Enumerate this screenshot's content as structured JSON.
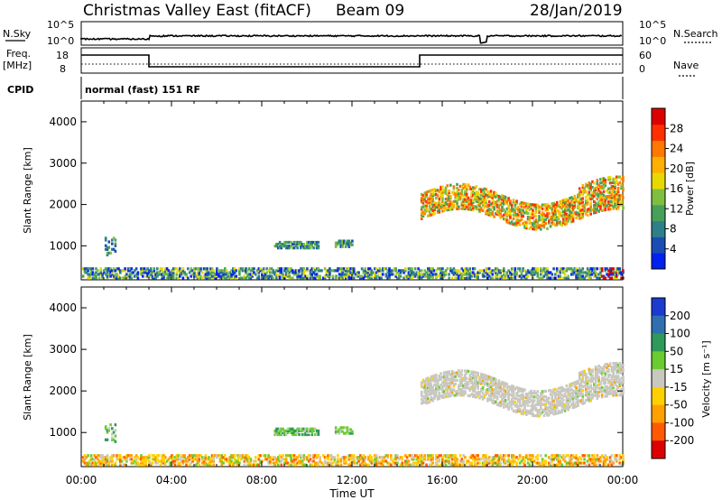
{
  "header": {
    "title": "Christmas Valley East (fitACF)",
    "beam": "Beam 09",
    "date": "28/Jan/2019"
  },
  "status_panels": {
    "nsky_label": "N.Sky",
    "nsearch_label": "N.Search",
    "freq_label_top": "Freq.",
    "freq_label_bottom": "[MHz]",
    "nave_label": "Nave",
    "cpid_label": "CPID",
    "cpid_value": "normal (fast) 151 RF",
    "noise_ticks_left": [
      "10^5",
      "10^0"
    ],
    "noise_ticks_right": [
      "10^5",
      "10^0"
    ],
    "freq_ticks": [
      "18",
      "8"
    ],
    "nave_ticks": [
      "60",
      "0"
    ]
  },
  "chart_data": [
    {
      "type": "heatmap",
      "name": "power",
      "ylabel": "Slant Range [km]",
      "yticks": [
        1000,
        2000,
        3000,
        4000
      ],
      "ylim": [
        180,
        4500
      ],
      "xlim": [
        0,
        24
      ],
      "xticks": [
        "00:00",
        "04:00",
        "08:00",
        "12:00",
        "16:00",
        "20:00",
        "00:00"
      ],
      "colorbar": {
        "label": "Power [dB]",
        "ticks": [
          "4",
          "8",
          "12",
          "16",
          "20",
          "24",
          "28"
        ],
        "colors": [
          "#0022ee",
          "#1a4db3",
          "#2e7f8a",
          "#47a05a",
          "#7fbf3f",
          "#e8d800",
          "#ffb000",
          "#ff7800",
          "#ff3000",
          "#dd0000"
        ]
      },
      "regions": [
        {
          "t0": 0.0,
          "t1": 24.0,
          "r0": 190,
          "r1": 420,
          "density": 0.55,
          "kind": "ground"
        },
        {
          "t0": 1.0,
          "t1": 1.5,
          "r0": 750,
          "r1": 1200,
          "density": 0.35,
          "kind": "patch"
        },
        {
          "t0": 8.5,
          "t1": 10.5,
          "r0": 920,
          "r1": 1080,
          "density": 0.7,
          "kind": "band"
        },
        {
          "t0": 11.2,
          "t1": 12.0,
          "r0": 950,
          "r1": 1100,
          "density": 0.7,
          "kind": "band"
        },
        {
          "t0": 15.0,
          "t1": 24.0,
          "r0": 1500,
          "r1": 2600,
          "density": 0.55,
          "kind": "F"
        }
      ]
    },
    {
      "type": "heatmap",
      "name": "velocity",
      "ylabel": "Slant Range [km]",
      "xlabel": "Time UT",
      "yticks": [
        1000,
        2000,
        3000,
        4000
      ],
      "ylim": [
        180,
        4500
      ],
      "xlim": [
        0,
        24
      ],
      "xticks": [
        "00:00",
        "04:00",
        "08:00",
        "12:00",
        "16:00",
        "20:00",
        "00:00"
      ],
      "colorbar": {
        "label": "Velocity [m s⁻¹]",
        "ticks": [
          "200",
          "100",
          "50",
          "15",
          "-15",
          "-50",
          "-100",
          "-200"
        ],
        "colors": [
          "#1a3ad0",
          "#2f6fb0",
          "#2f9a5a",
          "#6acc30",
          "#c8c8c0",
          "#ffd000",
          "#ffa000",
          "#ff5a00",
          "#dd0000"
        ]
      },
      "regions": [
        {
          "t0": 0.0,
          "t1": 24.0,
          "r0": 190,
          "r1": 430,
          "density": 0.5,
          "kind": "ground"
        },
        {
          "t0": 1.0,
          "t1": 1.5,
          "r0": 750,
          "r1": 1200,
          "density": 0.3,
          "kind": "patch"
        },
        {
          "t0": 8.5,
          "t1": 10.5,
          "r0": 920,
          "r1": 1080,
          "density": 0.7,
          "kind": "band"
        },
        {
          "t0": 11.2,
          "t1": 12.0,
          "r0": 950,
          "r1": 1100,
          "density": 0.7,
          "kind": "band"
        },
        {
          "t0": 15.0,
          "t1": 24.0,
          "r0": 1500,
          "r1": 2600,
          "density": 0.6,
          "kind": "F"
        }
      ]
    }
  ],
  "time_series": {
    "freq_mhz": [
      [
        0,
        16
      ],
      [
        3,
        16
      ],
      [
        3,
        9.5
      ],
      [
        15,
        9.5
      ],
      [
        15,
        16
      ],
      [
        24,
        16
      ]
    ],
    "freq_dotted_mhz": 12
  }
}
